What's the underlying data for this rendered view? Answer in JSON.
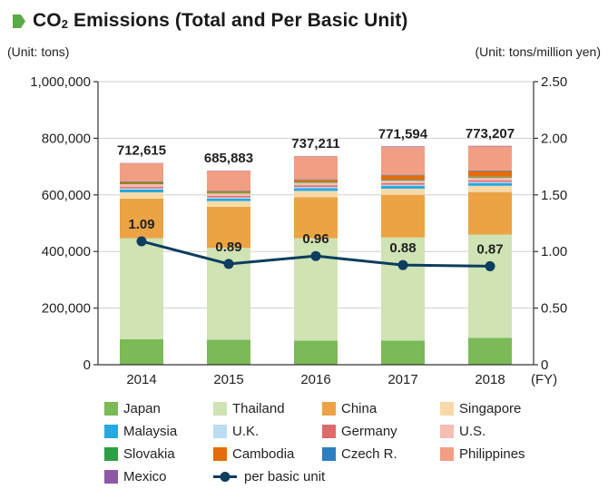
{
  "header": {
    "title_pre": "CO",
    "title_sub": "2",
    "title_post": " Emissions (Total and Per Basic Unit)",
    "marker_color": "#5aaa46"
  },
  "chart_data": {
    "type": "bar",
    "stacked": true,
    "categories": [
      "2014",
      "2015",
      "2016",
      "2017",
      "2018"
    ],
    "x_unit_label": "(FY)",
    "left_unit": "(Unit: tons)",
    "right_unit": "(Unit: tons/million yen)",
    "ylim": [
      0,
      1000000
    ],
    "y_ticks": [
      "0",
      "200,000",
      "400,000",
      "600,000",
      "800,000",
      "1,000,000"
    ],
    "y2lim": [
      0,
      2.5
    ],
    "y2_ticks": [
      "0",
      "0.50",
      "1.00",
      "1.50",
      "2.00",
      "2.50"
    ],
    "grid": true,
    "totals": [
      "712,615",
      "685,883",
      "737,211",
      "771,594",
      "773,207"
    ],
    "series": [
      {
        "name": "Japan",
        "color": "#7cb957",
        "values": [
          90000,
          88000,
          85000,
          85000,
          95000
        ]
      },
      {
        "name": "Thailand",
        "color": "#cfe3b5",
        "values": [
          357000,
          325000,
          362000,
          365000,
          365000
        ]
      },
      {
        "name": "China",
        "color": "#eba344",
        "values": [
          140000,
          145000,
          145000,
          150000,
          150000
        ]
      },
      {
        "name": "Singapore",
        "color": "#f8d9a8",
        "values": [
          22000,
          20000,
          22000,
          22000,
          22000
        ]
      },
      {
        "name": "Malaysia",
        "color": "#27a8df",
        "values": [
          10000,
          9000,
          10000,
          10000,
          10000
        ]
      },
      {
        "name": "U.K.",
        "color": "#bcdcf0",
        "values": [
          4000,
          4000,
          4000,
          4000,
          4000
        ]
      },
      {
        "name": "Germany",
        "color": "#e06a6a",
        "values": [
          5000,
          5000,
          5000,
          5000,
          5000
        ]
      },
      {
        "name": "U.S.",
        "color": "#f5bdb3",
        "values": [
          10000,
          9000,
          10000,
          10000,
          10000
        ]
      },
      {
        "name": "Slovakia",
        "color": "#2e9e44",
        "values": [
          3000,
          3000,
          3000,
          3000,
          3000
        ]
      },
      {
        "name": "Cambodia",
        "color": "#e46c0a",
        "values": [
          5000,
          5000,
          7000,
          15000,
          20000
        ]
      },
      {
        "name": "Czech R.",
        "color": "#2d7ec1",
        "values": [
          2000,
          2000,
          2000,
          2000,
          2000
        ]
      },
      {
        "name": "Philippines",
        "color": "#f29e83",
        "values": [
          63615,
          69883,
          81211,
          98594,
          85207
        ]
      },
      {
        "name": "Mexico",
        "color": "#8d58a6",
        "values": [
          1000,
          1000,
          1000,
          2000,
          2000
        ]
      }
    ],
    "line_series": {
      "name": "per basic unit",
      "color": "#0d3d5f",
      "values": [
        1.09,
        0.89,
        0.96,
        0.88,
        0.87
      ],
      "labels": [
        "1.09",
        "0.89",
        "0.96",
        "0.88",
        "0.87"
      ]
    }
  }
}
